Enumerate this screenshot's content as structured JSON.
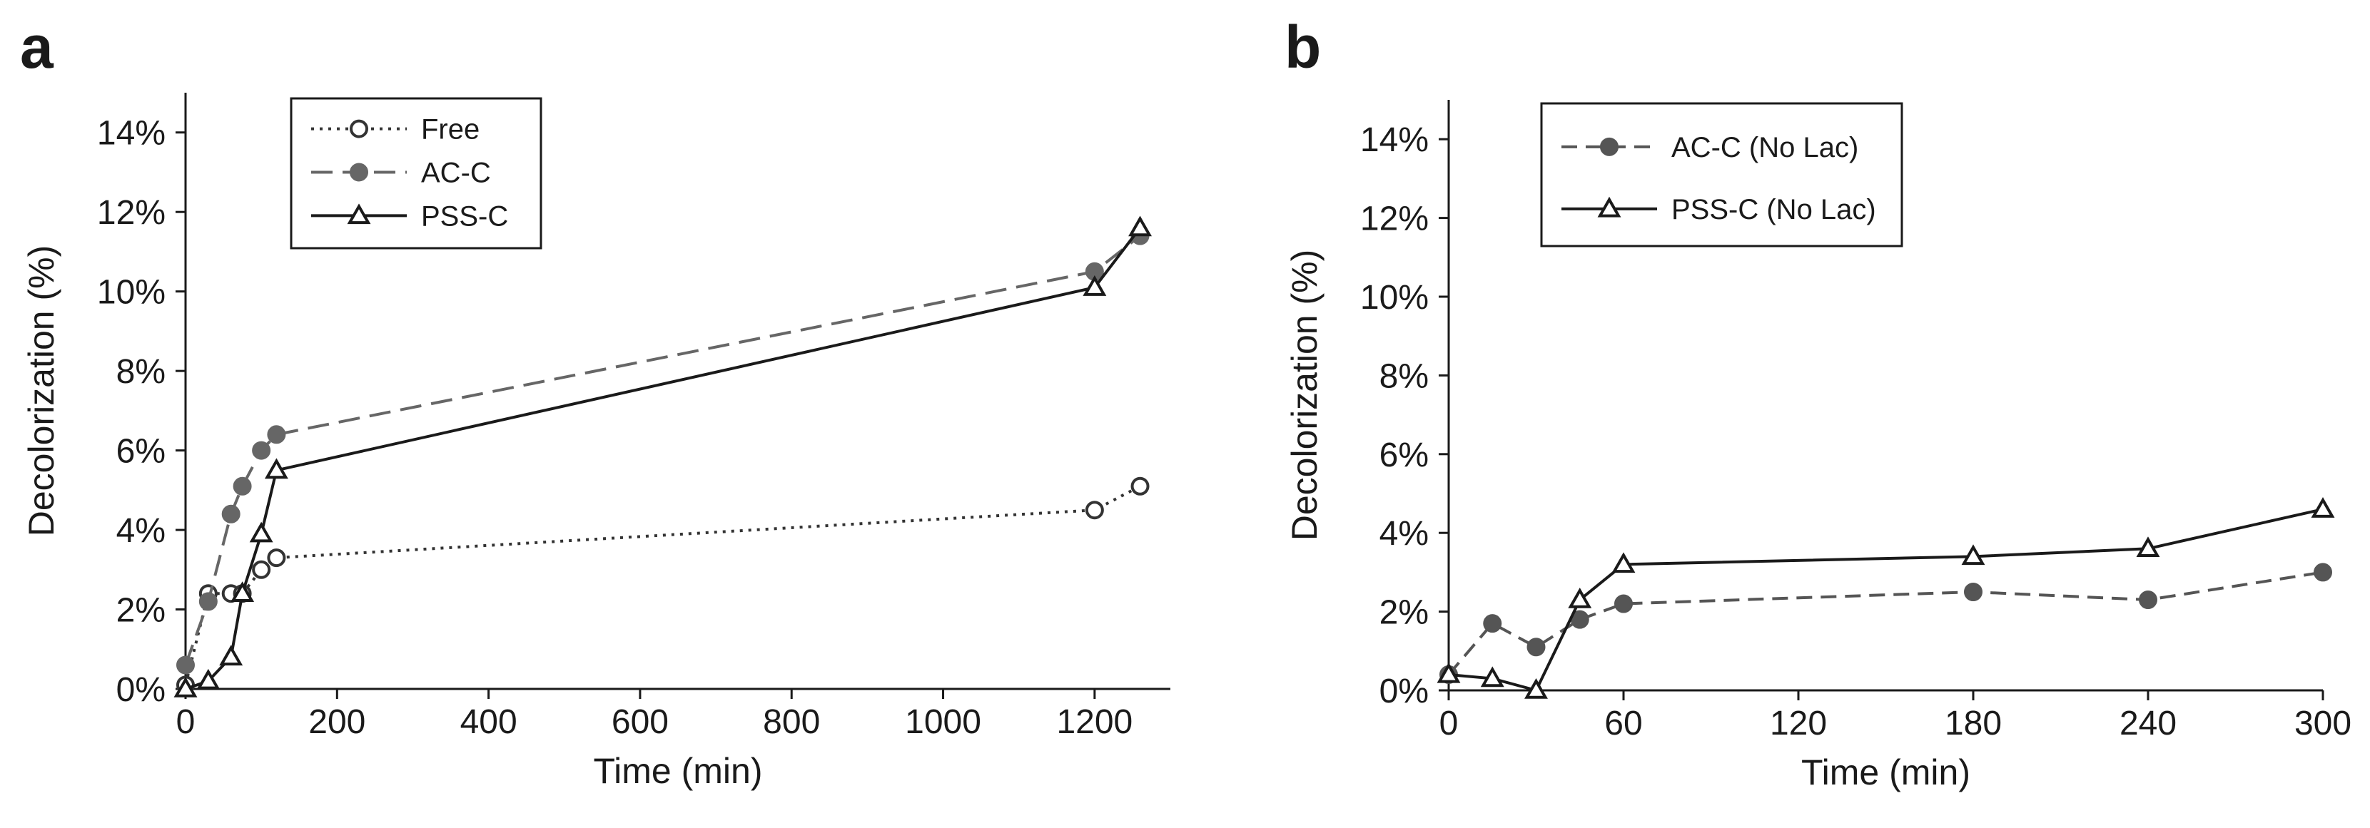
{
  "chart_data": [
    {
      "panel": "a",
      "type": "line",
      "xlabel": "Time (min)",
      "ylabel": "Decolorization (%)",
      "xlim": [
        0,
        1300
      ],
      "ylim": [
        0,
        15
      ],
      "xticks": [
        0,
        200,
        400,
        600,
        800,
        1000,
        1200
      ],
      "xtick_labels": [
        "0",
        "200",
        "400",
        "600",
        "800",
        "1000",
        "1200"
      ],
      "yticks": [
        0,
        2,
        4,
        6,
        8,
        10,
        12,
        14
      ],
      "ytick_labels": [
        "0%",
        "2%",
        "4%",
        "6%",
        "8%",
        "10%",
        "12%",
        "14%"
      ],
      "legend_position": "top-left",
      "series": [
        {
          "name": "Free",
          "marker": "open-circle",
          "line": "dotted",
          "color": "#333333",
          "x": [
            0,
            30,
            60,
            75,
            100,
            120,
            1200,
            1260
          ],
          "y": [
            0.1,
            2.4,
            2.4,
            2.4,
            3.0,
            3.3,
            4.5,
            5.1
          ]
        },
        {
          "name": "AC-C",
          "marker": "filled-circle",
          "line": "long-dash",
          "color": "#666666",
          "x": [
            0,
            30,
            60,
            75,
            100,
            120,
            1200,
            1260
          ],
          "y": [
            0.6,
            2.2,
            4.4,
            5.1,
            6.0,
            6.4,
            10.5,
            11.4
          ]
        },
        {
          "name": "PSS-C",
          "marker": "open-triangle",
          "line": "solid",
          "color": "#1a1a1a",
          "x": [
            0,
            30,
            60,
            75,
            100,
            120,
            1200,
            1260
          ],
          "y": [
            0.0,
            0.2,
            0.8,
            2.4,
            3.9,
            5.5,
            10.1,
            11.6
          ]
        }
      ]
    },
    {
      "panel": "b",
      "type": "line",
      "xlabel": "Time (min)",
      "ylabel": "Decolorization (%)",
      "xlim": [
        0,
        300
      ],
      "ylim": [
        0,
        15
      ],
      "xticks": [
        0,
        60,
        120,
        180,
        240,
        300
      ],
      "xtick_labels": [
        "0",
        "60",
        "120",
        "180",
        "240",
        "300"
      ],
      "yticks": [
        0,
        2,
        4,
        6,
        8,
        10,
        12,
        14
      ],
      "ytick_labels": [
        "0%",
        "2%",
        "4%",
        "6%",
        "8%",
        "10%",
        "12%",
        "14%"
      ],
      "legend_position": "top-left",
      "series": [
        {
          "name": "AC-C (No Lac)",
          "marker": "filled-circle",
          "line": "dash",
          "color": "#555555",
          "x": [
            0,
            15,
            30,
            45,
            60,
            180,
            240,
            300
          ],
          "y": [
            0.4,
            1.7,
            1.1,
            1.8,
            2.2,
            2.5,
            2.3,
            3.0
          ]
        },
        {
          "name": "PSS-C (No Lac)",
          "marker": "open-triangle",
          "line": "solid",
          "color": "#1a1a1a",
          "x": [
            0,
            15,
            30,
            45,
            60,
            180,
            240,
            300
          ],
          "y": [
            0.4,
            0.3,
            0.0,
            2.3,
            3.2,
            3.4,
            3.6,
            4.6
          ]
        }
      ]
    }
  ]
}
